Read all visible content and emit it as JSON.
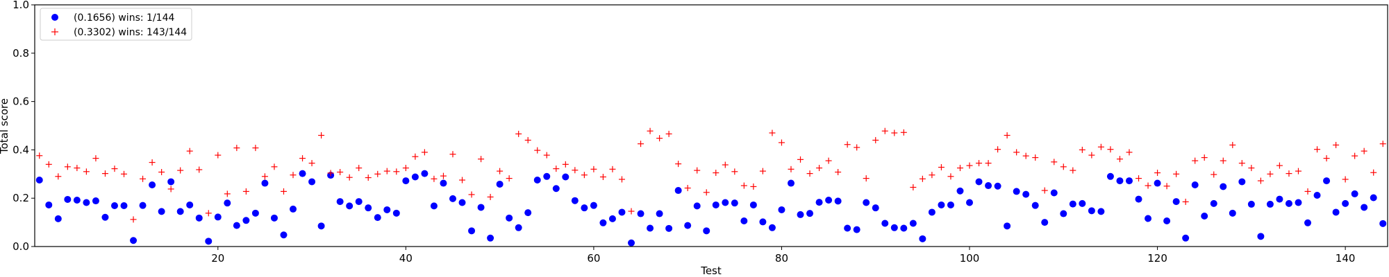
{
  "chart_data": {
    "type": "scatter",
    "title": "",
    "xlabel": "Test",
    "ylabel": "Total score",
    "xlim": [
      0.5,
      144.5
    ],
    "ylim": [
      0.0,
      1.0
    ],
    "xticks": [
      20,
      40,
      60,
      80,
      100,
      120,
      140
    ],
    "yticks": [
      0.0,
      0.2,
      0.4,
      0.6,
      0.8,
      1.0
    ],
    "grid": false,
    "legend_position": "top-left",
    "series": [
      {
        "name": "(0.1656) wins: 1/144",
        "marker": "circle",
        "color": "#0000ff",
        "values": [
          0.275,
          0.172,
          0.115,
          0.195,
          0.192,
          0.182,
          0.189,
          0.121,
          0.169,
          0.169,
          0.025,
          0.17,
          0.255,
          0.145,
          0.268,
          0.145,
          0.172,
          0.118,
          0.022,
          0.122,
          0.18,
          0.087,
          0.108,
          0.138,
          0.262,
          0.118,
          0.048,
          0.155,
          0.302,
          0.268,
          0.085,
          0.295,
          0.186,
          0.168,
          0.186,
          0.16,
          0.12,
          0.152,
          0.138,
          0.272,
          0.288,
          0.302,
          0.168,
          0.262,
          0.198,
          0.182,
          0.065,
          0.162,
          0.035,
          0.258,
          0.118,
          0.078,
          0.14,
          0.275,
          0.29,
          0.24,
          0.288,
          0.19,
          0.16,
          0.17,
          0.098,
          0.115,
          0.142,
          0.015,
          0.136,
          0.076,
          0.136,
          0.075,
          0.232,
          0.087,
          0.168,
          0.065,
          0.172,
          0.182,
          0.18,
          0.106,
          0.172,
          0.102,
          0.078,
          0.152,
          0.262,
          0.132,
          0.137,
          0.183,
          0.192,
          0.188,
          0.076,
          0.07,
          0.182,
          0.16,
          0.096,
          0.078,
          0.076,
          0.096,
          0.032,
          0.142,
          0.172,
          0.172,
          0.23,
          0.182,
          0.268,
          0.252,
          0.25,
          0.085,
          0.228,
          0.216,
          0.17,
          0.1,
          0.222,
          0.136,
          0.176,
          0.178,
          0.148,
          0.145,
          0.29,
          0.272,
          0.272,
          0.196,
          0.116,
          0.262,
          0.106,
          0.186,
          0.035,
          0.255,
          0.126,
          0.178,
          0.248,
          0.138,
          0.268,
          0.175,
          0.042,
          0.175,
          0.196,
          0.178,
          0.182,
          0.098,
          0.212,
          0.272,
          0.142,
          0.178,
          0.218,
          0.162,
          0.202,
          0.095
        ]
      },
      {
        "name": "(0.3302) wins: 143/144",
        "marker": "plus",
        "color": "#ff0000",
        "values": [
          0.376,
          0.34,
          0.29,
          0.33,
          0.325,
          0.31,
          0.365,
          0.302,
          0.322,
          0.3,
          0.112,
          0.28,
          0.348,
          0.308,
          0.238,
          0.315,
          0.395,
          0.318,
          0.138,
          0.378,
          0.218,
          0.408,
          0.228,
          0.408,
          0.29,
          0.33,
          0.228,
          0.296,
          0.365,
          0.345,
          0.46,
          0.304,
          0.308,
          0.286,
          0.325,
          0.285,
          0.3,
          0.312,
          0.31,
          0.325,
          0.372,
          0.39,
          0.28,
          0.292,
          0.382,
          0.275,
          0.215,
          0.362,
          0.205,
          0.312,
          0.282,
          0.466,
          0.44,
          0.398,
          0.378,
          0.322,
          0.34,
          0.316,
          0.296,
          0.32,
          0.288,
          0.32,
          0.278,
          0.146,
          0.425,
          0.478,
          0.448,
          0.466,
          0.342,
          0.242,
          0.315,
          0.224,
          0.305,
          0.338,
          0.31,
          0.252,
          0.248,
          0.312,
          0.47,
          0.43,
          0.32,
          0.36,
          0.302,
          0.325,
          0.355,
          0.308,
          0.422,
          0.41,
          0.282,
          0.44,
          0.478,
          0.47,
          0.472,
          0.245,
          0.28,
          0.296,
          0.328,
          0.29,
          0.325,
          0.335,
          0.345,
          0.345,
          0.402,
          0.46,
          0.39,
          0.375,
          0.368,
          0.232,
          0.35,
          0.33,
          0.315,
          0.4,
          0.378,
          0.412,
          0.402,
          0.362,
          0.39,
          0.282,
          0.252,
          0.305,
          0.25,
          0.3,
          0.185,
          0.355,
          0.368,
          0.298,
          0.355,
          0.42,
          0.345,
          0.325,
          0.272,
          0.3,
          0.335,
          0.302,
          0.312,
          0.228,
          0.402,
          0.365,
          0.42,
          0.278,
          0.375,
          0.395,
          0.306,
          0.425
        ]
      }
    ]
  }
}
